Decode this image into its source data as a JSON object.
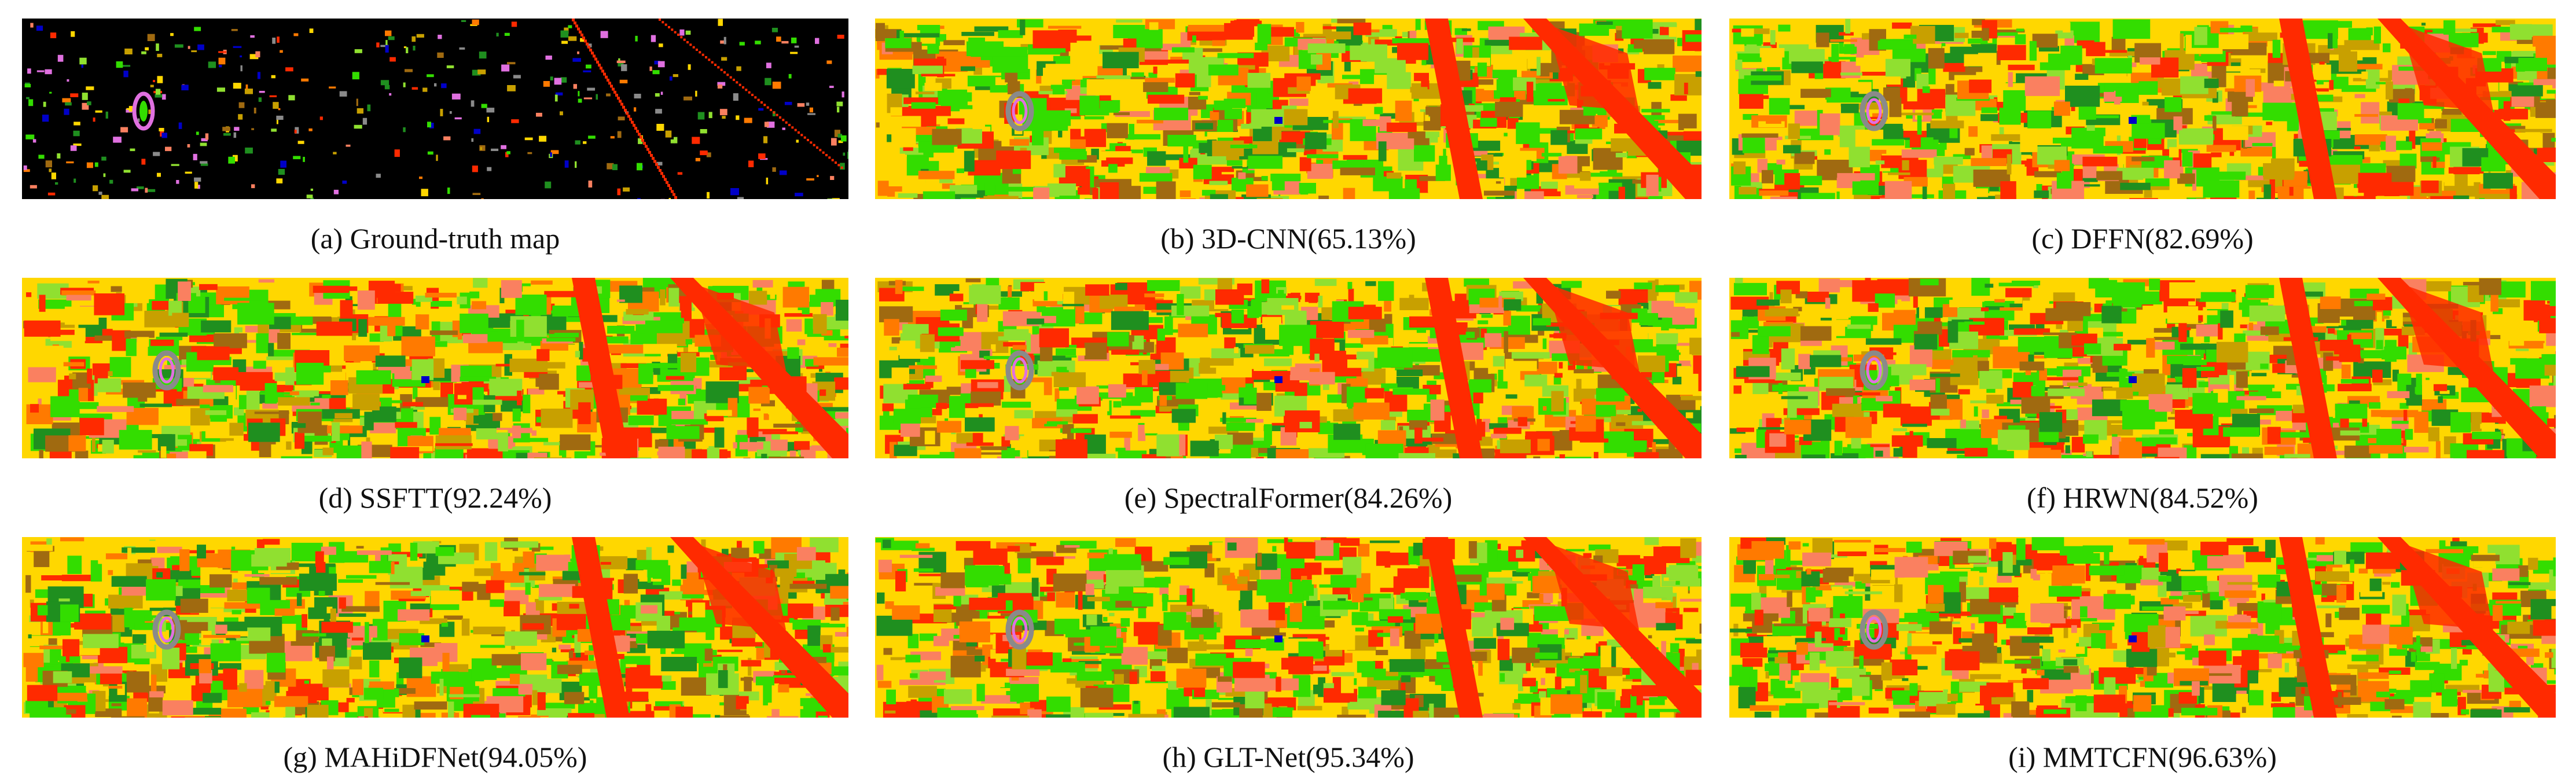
{
  "figure": {
    "panels": [
      {
        "id": "a",
        "caption": "(a) Ground-truth map",
        "kind": "ground-truth"
      },
      {
        "id": "b",
        "caption": "(b) 3D-CNN(65.13%)",
        "kind": "classification",
        "model": "3D-CNN",
        "oa_percent": 65.13
      },
      {
        "id": "c",
        "caption": "(c) DFFN(82.69%)",
        "kind": "classification",
        "model": "DFFN",
        "oa_percent": 82.69
      },
      {
        "id": "d",
        "caption": "(d) SSFTT(92.24%)",
        "kind": "classification",
        "model": "SSFTT",
        "oa_percent": 92.24
      },
      {
        "id": "e",
        "caption": "(e) SpectralFormer(84.26%)",
        "kind": "classification",
        "model": "SpectralFormer",
        "oa_percent": 84.26
      },
      {
        "id": "f",
        "caption": "(f) HRWN(84.52%)",
        "kind": "classification",
        "model": "HRWN",
        "oa_percent": 84.52
      },
      {
        "id": "g",
        "caption": "(g) MAHiDFNet(94.05%)",
        "kind": "classification",
        "model": "MAHiDFNet",
        "oa_percent": 94.05
      },
      {
        "id": "h",
        "caption": "(h) GLT-Net(95.34%)",
        "kind": "classification",
        "model": "GLT-Net",
        "oa_percent": 95.34
      },
      {
        "id": "i",
        "caption": "(i) MMTCFN(96.63%)",
        "kind": "classification",
        "model": "MMTCFN",
        "oa_percent": 96.63
      }
    ],
    "class_colors": [
      "#ffd700",
      "#33dd00",
      "#ff2a00",
      "#fa8060",
      "#c8a000",
      "#1f8f1f",
      "#a06a10",
      "#8a8a8a",
      "#e070e0",
      "#0000c8",
      "#ff7a00",
      "#90e030"
    ],
    "background_color": "#000000"
  }
}
